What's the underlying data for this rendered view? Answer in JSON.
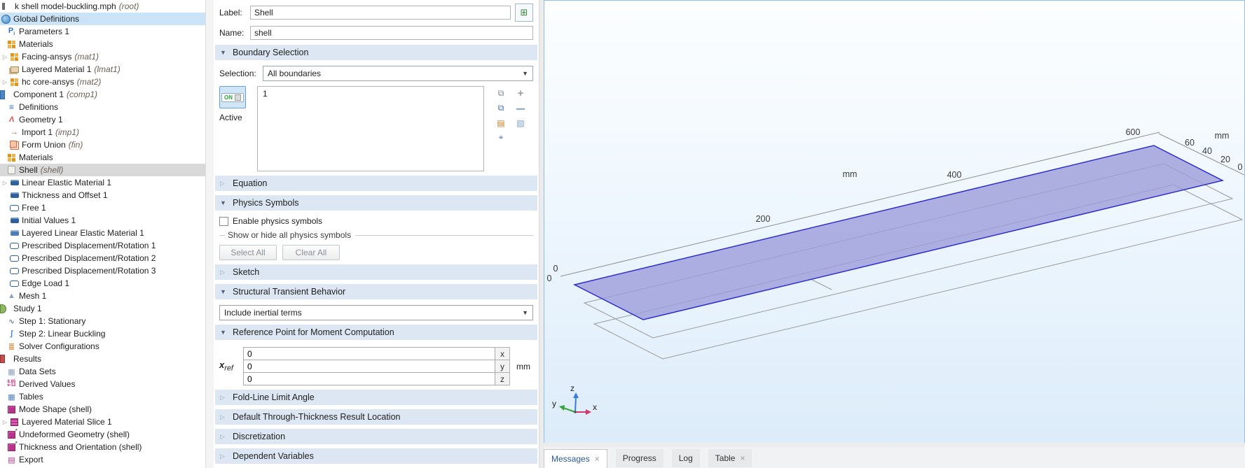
{
  "model_tree": {
    "items": [
      {
        "label": "k shell model-buckling.mph",
        "tag": "(root)",
        "depth": 0,
        "icon": "model-root"
      },
      {
        "label": "Global Definitions",
        "tag": "",
        "depth": 1,
        "icon": "globe",
        "selected": "blue"
      },
      {
        "label": "Parameters 1",
        "tag": "",
        "depth": 2,
        "icon": "parameters"
      },
      {
        "label": "Materials",
        "tag": "",
        "depth": 2,
        "icon": "materials"
      },
      {
        "label": "Facing-ansys",
        "tag": "(mat1)",
        "depth": 3,
        "icon": "material",
        "arrow": true
      },
      {
        "label": "Layered Material 1",
        "tag": "(lmat1)",
        "depth": 3,
        "icon": "layered-material"
      },
      {
        "label": "hc core-ansys",
        "tag": "(mat2)",
        "depth": 3,
        "icon": "material",
        "arrow": true
      },
      {
        "label": "Component 1",
        "tag": "(comp1)",
        "depth": 1,
        "icon": "component"
      },
      {
        "label": "Definitions",
        "tag": "",
        "depth": 2,
        "icon": "definitions"
      },
      {
        "label": "Geometry 1",
        "tag": "",
        "depth": 2,
        "icon": "geometry"
      },
      {
        "label": "Import 1",
        "tag": "(imp1)",
        "depth": 3,
        "icon": "import"
      },
      {
        "label": "Form Union",
        "tag": "(fin)",
        "depth": 3,
        "icon": "form-union"
      },
      {
        "label": "Materials",
        "tag": "",
        "depth": 2,
        "icon": "materials"
      },
      {
        "label": "Shell",
        "tag": "(shell)",
        "depth": 2,
        "icon": "shell",
        "selected": "gray"
      },
      {
        "label": "Linear Elastic Material 1",
        "tag": "",
        "depth": 3,
        "icon": "domain-condition",
        "arrow": true
      },
      {
        "label": "Thickness and Offset 1",
        "tag": "",
        "depth": 3,
        "icon": "domain-condition"
      },
      {
        "label": "Free 1",
        "tag": "",
        "depth": 3,
        "icon": "boundary-condition"
      },
      {
        "label": "Initial Values 1",
        "tag": "",
        "depth": 3,
        "icon": "domain-condition"
      },
      {
        "label": "Layered Linear Elastic Material 1",
        "tag": "",
        "depth": 3,
        "icon": "domain-condition-2"
      },
      {
        "label": "Prescribed Displacement/Rotation 1",
        "tag": "",
        "depth": 3,
        "icon": "boundary-condition"
      },
      {
        "label": "Prescribed Displacement/Rotation 2",
        "tag": "",
        "depth": 3,
        "icon": "boundary-condition"
      },
      {
        "label": "Prescribed Displacement/Rotation 3",
        "tag": "",
        "depth": 3,
        "icon": "boundary-condition"
      },
      {
        "label": "Edge Load 1",
        "tag": "",
        "depth": 3,
        "icon": "boundary-condition"
      },
      {
        "label": "Mesh 1",
        "tag": "",
        "depth": 2,
        "icon": "mesh"
      },
      {
        "label": "Study 1",
        "tag": "",
        "depth": 1,
        "icon": "study"
      },
      {
        "label": "Step 1: Stationary",
        "tag": "",
        "depth": 2,
        "icon": "step-stationary"
      },
      {
        "label": "Step 2: Linear Buckling",
        "tag": "",
        "depth": 2,
        "icon": "step-buckling"
      },
      {
        "label": "Solver Configurations",
        "tag": "",
        "depth": 2,
        "icon": "solver-configurations"
      },
      {
        "label": "Results",
        "tag": "",
        "depth": 1,
        "icon": "results"
      },
      {
        "label": "Data Sets",
        "tag": "",
        "depth": 2,
        "icon": "data-sets"
      },
      {
        "label": "Derived Values",
        "tag": "",
        "depth": 2,
        "icon": "derived-values"
      },
      {
        "label": "Tables",
        "tag": "",
        "depth": 2,
        "icon": "tables"
      },
      {
        "label": "Mode Shape (shell)",
        "tag": "",
        "depth": 2,
        "icon": "plot-group"
      },
      {
        "label": "Layered Material Slice 1",
        "tag": "",
        "depth": 3,
        "icon": "layered-slice",
        "arrow": true
      },
      {
        "label": "Undeformed Geometry (shell)",
        "tag": "",
        "depth": 2,
        "icon": "plot-group-new"
      },
      {
        "label": "Thickness and Orientation (shell)",
        "tag": "",
        "depth": 2,
        "icon": "plot-group-new"
      },
      {
        "label": "Export",
        "tag": "",
        "depth": 2,
        "icon": "export"
      }
    ]
  },
  "settings": {
    "header": {
      "label_label": "Label:",
      "label_value": "Shell",
      "name_label": "Name:",
      "name_value": "shell"
    },
    "boundary_selection": {
      "title": "Boundary Selection",
      "selection_label": "Selection:",
      "selection_value": "All boundaries",
      "active_label": "Active",
      "list_items": [
        "1"
      ]
    },
    "equation": {
      "title": "Equation"
    },
    "physics_symbols": {
      "title": "Physics Symbols",
      "enable_label": "Enable physics symbols",
      "group_label": "Show or hide all physics symbols",
      "select_all_label": "Select All",
      "clear_all_label": "Clear All"
    },
    "sketch": {
      "title": "Sketch"
    },
    "structural_transient": {
      "title": "Structural Transient Behavior",
      "value": "Include inertial terms"
    },
    "reference_point": {
      "title": "Reference Point for Moment Computation",
      "var_label": "x",
      "var_sub": "ref",
      "values": [
        "0",
        "0",
        "0"
      ],
      "components": [
        "x",
        "y",
        "z"
      ],
      "unit": "mm"
    },
    "fold_line": {
      "title": "Fold-Line Limit Angle"
    },
    "through_thickness": {
      "title": "Default Through-Thickness Result Location"
    },
    "discretization": {
      "title": "Discretization"
    },
    "dependent_variables": {
      "title": "Dependent Variables"
    }
  },
  "graphics": {
    "x_axis": {
      "labels": [
        "0",
        "200",
        "400",
        "600"
      ],
      "unit": "mm"
    },
    "y_axis": {
      "labels": [
        "60",
        "40",
        "20",
        "0"
      ],
      "unit": "mm"
    },
    "origin_extra_label": "0",
    "triad": {
      "x": "x",
      "y": "y",
      "z": "z"
    }
  },
  "bottom_tabs": [
    {
      "label": "Messages",
      "closable": true,
      "active": true
    },
    {
      "label": "Progress",
      "closable": false,
      "active": false
    },
    {
      "label": "Log",
      "closable": false,
      "active": false
    },
    {
      "label": "Table",
      "closable": true,
      "active": false
    }
  ],
  "colors": {
    "plate_fill": "#9c9cda",
    "plate_edge": "#2e2ecc",
    "axis_gray": "#909090",
    "triad_x": "#d03a6a",
    "triad_y": "#3aa53a",
    "triad_z": "#3a7ad9"
  }
}
